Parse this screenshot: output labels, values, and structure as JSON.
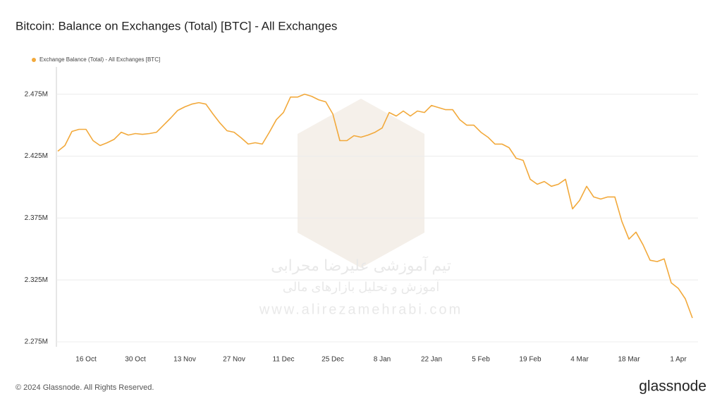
{
  "chart_data": {
    "type": "line",
    "title": "Bitcoin: Balance on Exchanges (Total) [BTC] - All Exchanges",
    "categories": [
      null,
      null,
      null,
      null,
      "16 Oct",
      null,
      null,
      null,
      null,
      null,
      null,
      "30 Oct",
      null,
      null,
      null,
      null,
      null,
      null,
      "13 Nov",
      null,
      null,
      null,
      null,
      null,
      null,
      "27 Nov",
      null,
      null,
      null,
      null,
      null,
      null,
      "11 Dec",
      null,
      null,
      null,
      null,
      null,
      null,
      "25 Dec",
      null,
      null,
      null,
      null,
      null,
      null,
      "8 Jan",
      null,
      null,
      null,
      null,
      null,
      null,
      "22 Jan",
      null,
      null,
      null,
      null,
      null,
      null,
      "5 Feb",
      null,
      null,
      null,
      null,
      null,
      null,
      "19 Feb",
      null,
      null,
      null,
      null,
      null,
      null,
      "4 Mar",
      null,
      null,
      null,
      null,
      null,
      null,
      "18 Mar",
      null,
      null,
      null,
      null,
      null,
      null,
      "1 Apr",
      null,
      null
    ],
    "series": [
      {
        "name": "Exchange Balance (Total) - All Exchanges [BTC]",
        "color": "#f2a93b",
        "values": [
          2429000,
          2433500,
          2444900,
          2446600,
          2446600,
          2437500,
          2433500,
          2435800,
          2438600,
          2444300,
          2442000,
          2443200,
          2442600,
          2443200,
          2444300,
          2450000,
          2455700,
          2461900,
          2464800,
          2467000,
          2468200,
          2467000,
          2459100,
          2451700,
          2445500,
          2444300,
          2439800,
          2434700,
          2435800,
          2434700,
          2444300,
          2454500,
          2460200,
          2472700,
          2472700,
          2475000,
          2473300,
          2470500,
          2468800,
          2459100,
          2437500,
          2437500,
          2441500,
          2440300,
          2442000,
          2444300,
          2447700,
          2460200,
          2457400,
          2461400,
          2457400,
          2461400,
          2460200,
          2465900,
          2464200,
          2462500,
          2462500,
          2454500,
          2450000,
          2450000,
          2444300,
          2440300,
          2434700,
          2434700,
          2431800,
          2423300,
          2421600,
          2406300,
          2402300,
          2404500,
          2400600,
          2402300,
          2406300,
          2382400,
          2389200,
          2400600,
          2392000,
          2390300,
          2392000,
          2392000,
          2372200,
          2358000,
          2363600,
          2353400,
          2340900,
          2339800,
          2342000,
          2322700,
          2318200,
          2309700,
          2294300
        ]
      }
    ],
    "ylim": [
      2271000,
      2497000
    ],
    "yticks": [
      {
        "value": 2275000,
        "label": "2.275M"
      },
      {
        "value": 2325000,
        "label": "2.325M"
      },
      {
        "value": 2375000,
        "label": "2.375M"
      },
      {
        "value": 2425000,
        "label": "2.425M"
      },
      {
        "value": 2475000,
        "label": "2.475M"
      }
    ],
    "grid": true,
    "legend": "top-left"
  },
  "watermark": [
    "تیم آموزشی علیرضا محرابی",
    "آموزش و تحلیل بازارهای مالی",
    "www.alirezamehrabi.com"
  ],
  "footer": "© 2024 Glassnode. All Rights Reserved.",
  "brand": "glassnode"
}
